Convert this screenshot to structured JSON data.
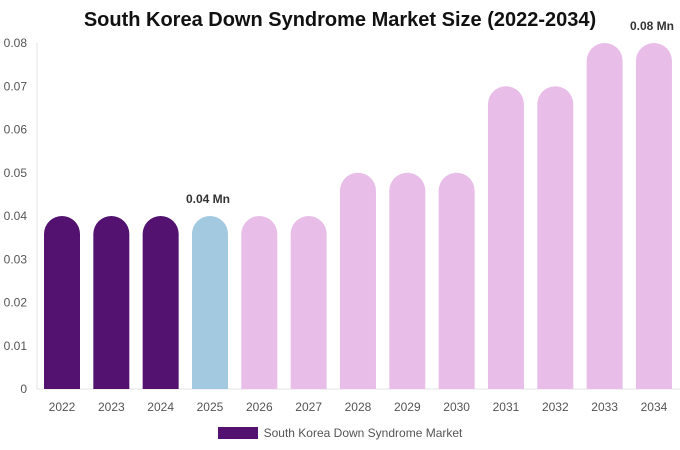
{
  "chart_data": {
    "type": "bar",
    "title": "South Korea Down Syndrome Market Size (2022-2034)",
    "categories": [
      "2022",
      "2023",
      "2024",
      "2025",
      "2026",
      "2027",
      "2028",
      "2029",
      "2030",
      "2031",
      "2032",
      "2033",
      "2034"
    ],
    "series": [
      {
        "name": "South Korea Down Syndrome Market",
        "values": [
          0.04,
          0.04,
          0.04,
          0.04,
          0.04,
          0.04,
          0.05,
          0.05,
          0.05,
          0.07,
          0.07,
          0.08,
          0.08
        ]
      }
    ],
    "yticks": [
      "0",
      "0.01",
      "0.02",
      "0.03",
      "0.04",
      "0.05",
      "0.06",
      "0.07",
      "0.08"
    ],
    "ylim": [
      0,
      0.08
    ],
    "data_labels": [
      {
        "index": 3,
        "text": "0.04 Mn"
      },
      {
        "index": 12,
        "text": "0.08 Mn"
      }
    ],
    "bar_colors": [
      "#541270",
      "#541270",
      "#541270",
      "#a2c9df",
      "#e8bee9",
      "#e8bee9",
      "#e8bee9",
      "#e8bee9",
      "#e8bee9",
      "#e8bee9",
      "#e8bee9",
      "#e8bee9",
      "#e8bee9"
    ],
    "legend_color": "#541270",
    "legend_position": "bottom-center",
    "grid": false
  }
}
